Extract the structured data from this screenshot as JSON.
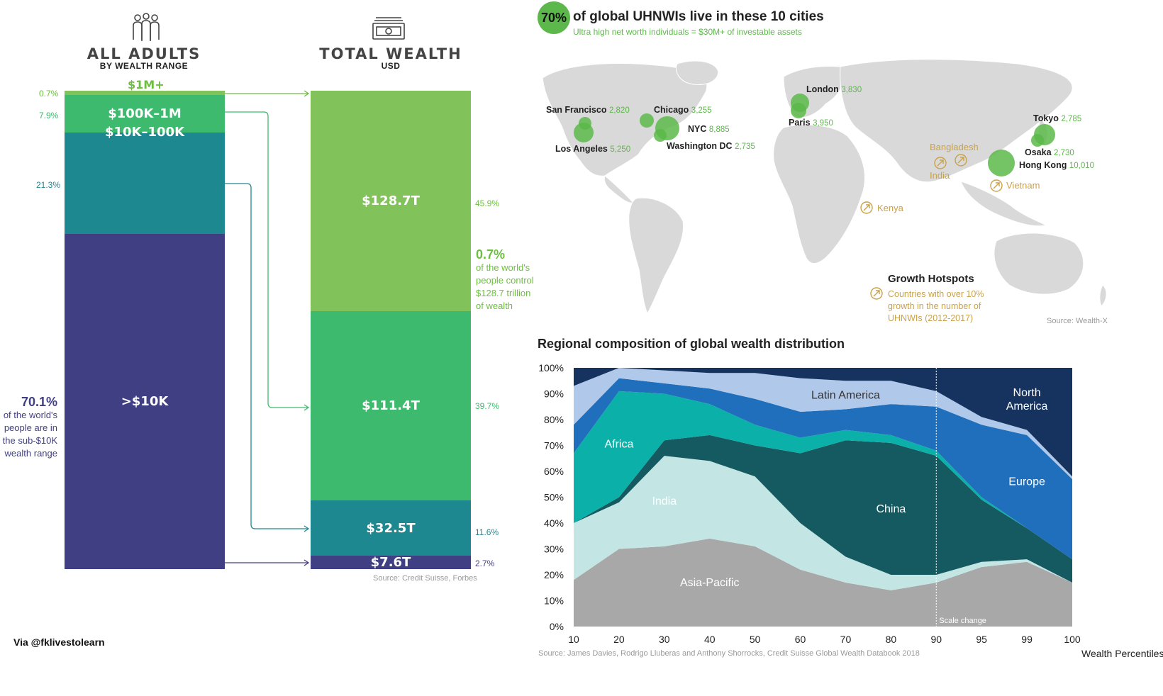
{
  "left": {
    "adults_title": "ALL ADULTS",
    "adults_sub": "BY WEALTH RANGE",
    "wealth_title": "TOTAL WEALTH",
    "wealth_sub": "USD",
    "segments": [
      {
        "label": "$1M+",
        "pct": "0.7%",
        "color": "#82c25a"
      },
      {
        "label": "$100K–1M",
        "pct": "7.9%",
        "color": "#3dba6e"
      },
      {
        "label": "$10K–100K",
        "pct": "21.3%",
        "color": "#1e8891"
      },
      {
        "label": ">$10K",
        "pct": "",
        "color": "#413f84"
      }
    ],
    "wealth_segments": [
      {
        "label": "$128.7T",
        "pct": "45.9%",
        "color": "#82c25a"
      },
      {
        "label": "$111.4T",
        "pct": "39.7%",
        "color": "#3dba6e"
      },
      {
        "label": "$32.5T",
        "pct": "11.6%",
        "color": "#1e8891"
      },
      {
        "label": "$7.6T",
        "pct": "2.7%",
        "color": "#413f84"
      }
    ],
    "note_top_big": "0.7%",
    "note_top_text": [
      "of the world's",
      "people control",
      "$128.7 trillion",
      "of wealth"
    ],
    "note_bottom_big": "70.1%",
    "note_bottom_text": [
      "of the world's",
      "people are in",
      "the sub-$10K",
      "wealth range"
    ],
    "source": "Source: Credit Suisse, Forbes",
    "via": "Via @fklivestolearn"
  },
  "map": {
    "badge": "70%",
    "title": "of global UHNWIs live in these 10 cities",
    "subtitle": "Ultra high net worth individuals = $30M+ of investable assets",
    "cities": [
      {
        "name": "San Francisco",
        "value": "2,820"
      },
      {
        "name": "Los Angeles",
        "value": "5,250"
      },
      {
        "name": "Chicago",
        "value": "3,255"
      },
      {
        "name": "NYC",
        "value": "8,885"
      },
      {
        "name": "Washington DC",
        "value": "2,735"
      },
      {
        "name": "London",
        "value": "3,830"
      },
      {
        "name": "Paris",
        "value": "3,950"
      },
      {
        "name": "Tokyo",
        "value": "2,785"
      },
      {
        "name": "Osaka",
        "value": "2,730"
      },
      {
        "name": "Hong Kong",
        "value": "10,010"
      }
    ],
    "hotspots": [
      "Bangladesh",
      "India",
      "Vietnam",
      "Kenya"
    ],
    "legend_title": "Growth Hotspots",
    "legend_text": [
      "Countries with over 10%",
      "growth in the number of",
      "UHNWIs (2012-2017)"
    ],
    "source": "Source: Wealth-X",
    "colors": {
      "bubble": "#5cb84a",
      "hotspot": "#c9a24a",
      "land": "#d9d9d9"
    }
  },
  "chart_data": {
    "type": "area",
    "title": "Regional composition of global wealth distribution",
    "xlabel": "Wealth Percentiles",
    "x": [
      "10",
      "20",
      "30",
      "40",
      "50",
      "60",
      "70",
      "80",
      "90",
      "95",
      "99",
      "100"
    ],
    "yticks": [
      "0%",
      "10%",
      "20%",
      "30%",
      "40%",
      "50%",
      "60%",
      "70%",
      "80%",
      "90%",
      "100%"
    ],
    "ylim": [
      0,
      100
    ],
    "annotation": "Scale change",
    "stacked": true,
    "series": [
      {
        "name": "Asia-Pacific",
        "color": "#a8a8a8",
        "values": [
          18,
          30,
          31,
          34,
          31,
          22,
          17,
          14,
          17,
          23,
          25,
          17
        ]
      },
      {
        "name": "India",
        "color": "#c3e6e4",
        "values": [
          22,
          18,
          35,
          30,
          27,
          18,
          10,
          6,
          3,
          2,
          1,
          0
        ]
      },
      {
        "name": "China",
        "color": "#145a60",
        "values": [
          0,
          2,
          6,
          10,
          12,
          27,
          45,
          51,
          46,
          24,
          12,
          9
        ]
      },
      {
        "name": "Africa",
        "color": "#0bb1a8",
        "values": [
          27,
          41,
          18,
          12,
          8,
          6,
          4,
          3,
          2,
          1,
          0,
          0
        ]
      },
      {
        "name": "Europe",
        "color": "#1f6fbd",
        "values": [
          11,
          5,
          4,
          6,
          10,
          10,
          8,
          12,
          17,
          28,
          36,
          31
        ]
      },
      {
        "name": "Latin America",
        "color": "#b0c9ea",
        "values": [
          15,
          4,
          5,
          6,
          10,
          13,
          11,
          9,
          6,
          3,
          2,
          1
        ]
      },
      {
        "name": "North America",
        "color": "#15335e",
        "values": [
          7,
          0,
          1,
          2,
          2,
          4,
          5,
          5,
          9,
          19,
          24,
          42
        ]
      }
    ],
    "source": "Source: James Davies, Rodrigo Lluberas and Anthony Shorrocks, Credit Suisse Global Wealth Databook 2018"
  }
}
